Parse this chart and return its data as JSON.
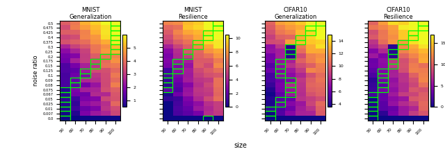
{
  "titles": [
    "MNIST\nGeneralization",
    "MNIST\nResilience",
    "CIFAR10\nGeneralization",
    "CIFAR10\nResilience"
  ],
  "xlabel": "size",
  "ylabel": "noise ratio",
  "x_ticks": [
    50,
    60,
    70,
    80,
    90,
    100
  ],
  "y_ticks": [
    0.0,
    0.007,
    0.01,
    0.025,
    0.05,
    0.067,
    0.075,
    0.08,
    0.09,
    0.1,
    0.125,
    0.15,
    0.175,
    0.2,
    0.25,
    0.3,
    0.375,
    0.4,
    0.425,
    0.475,
    0.5
  ],
  "cmap": "plasma",
  "clim_mnist_gen": [
    0.5,
    6.0
  ],
  "clim_mnist_res": [
    0.0,
    10.5
  ],
  "clim_cifar_gen": [
    3.5,
    15.0
  ],
  "clim_cifar_res": [
    0.0,
    17.0
  ],
  "figsize": [
    6.4,
    2.15
  ],
  "dpi": 100,
  "colorbar_ticks_mnist_gen": [
    1,
    2,
    3,
    4,
    5
  ],
  "colorbar_ticks_mnist_res": [
    0,
    2,
    4,
    6,
    8,
    10
  ],
  "colorbar_ticks_cifar_gen": [
    4,
    6,
    8,
    10,
    12,
    14
  ],
  "colorbar_ticks_cifar_res": [
    0,
    5,
    10,
    15
  ]
}
